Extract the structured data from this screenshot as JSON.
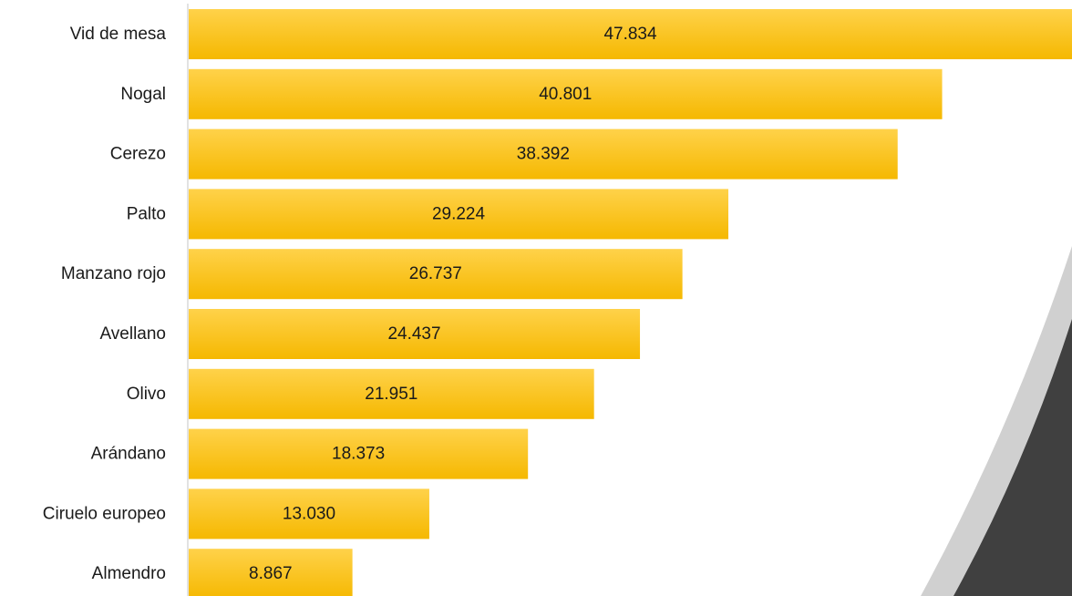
{
  "chart_data": {
    "type": "bar",
    "orientation": "horizontal",
    "categories": [
      "Vid de mesa",
      "Nogal",
      "Cerezo",
      "Palto",
      "Manzano rojo",
      "Avellano",
      "Olivo",
      "Arándano",
      "Ciruelo europeo",
      "Almendro"
    ],
    "values": [
      47834,
      40801,
      38392,
      29224,
      26737,
      24437,
      21951,
      18373,
      13030,
      8867
    ],
    "value_labels": [
      "47.834",
      "40.801",
      "38.392",
      "29.224",
      "26.737",
      "24.437",
      "21.951",
      "18.373",
      "13.030",
      "8.867"
    ],
    "xlim": [
      0,
      47834
    ],
    "grid": false,
    "legend": "none",
    "colors": {
      "bar_top": "#ffd24a",
      "bar_bottom": "#f5b800",
      "axis_line": "#d9d9d9",
      "decor_dark": "#404040",
      "decor_light": "#d0d0d0"
    }
  }
}
